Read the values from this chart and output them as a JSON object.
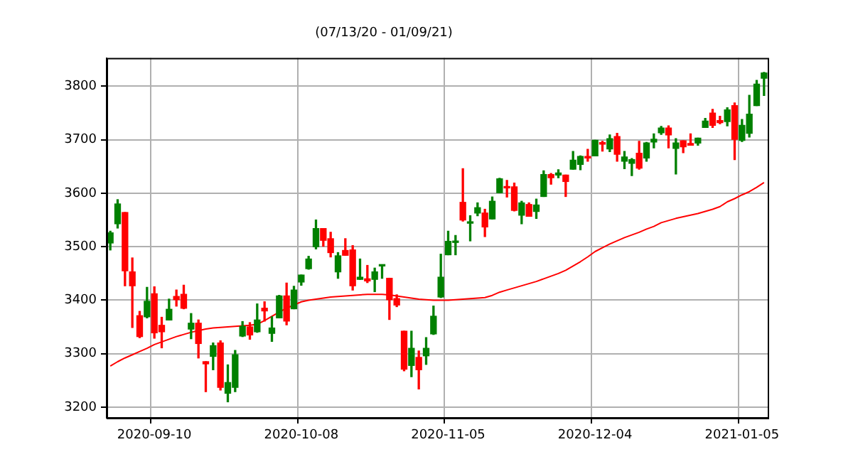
{
  "chart_data": {
    "type": "candlestick",
    "title": "(07/13/20 - 01/09/21)",
    "categories": [
      null,
      null,
      null,
      null,
      null,
      null,
      "2020-09-10",
      null,
      null,
      null,
      null,
      null,
      null,
      null,
      null,
      null,
      null,
      null,
      null,
      null,
      null,
      null,
      null,
      null,
      null,
      null,
      "2020-10-08",
      null,
      null,
      null,
      null,
      null,
      null,
      null,
      null,
      null,
      null,
      null,
      null,
      null,
      null,
      null,
      null,
      null,
      null,
      null,
      "2020-11-05",
      null,
      null,
      null,
      null,
      null,
      null,
      null,
      null,
      null,
      null,
      null,
      null,
      null,
      null,
      null,
      null,
      null,
      null,
      null,
      "2020-12-04",
      null,
      null,
      null,
      null,
      null,
      null,
      null,
      null,
      null,
      null,
      null,
      null,
      null,
      null,
      null,
      null,
      null,
      null,
      null,
      "2021-01-05",
      null,
      null,
      null
    ],
    "ohlc": [
      [
        3507,
        3529,
        3494,
        3526
      ],
      [
        3543,
        3588,
        3535,
        3580
      ],
      [
        3564,
        3564,
        3427,
        3455
      ],
      [
        3453,
        3479,
        3349,
        3427
      ],
      [
        3371,
        3379,
        3330,
        3332
      ],
      [
        3369,
        3424,
        3367,
        3398
      ],
      [
        3412,
        3425,
        3329,
        3339
      ],
      [
        3353,
        3368,
        3311,
        3341
      ],
      [
        3363,
        3402,
        3363,
        3383
      ],
      [
        3407,
        3419,
        3389,
        3401
      ],
      [
        3411,
        3428,
        3384,
        3385
      ],
      [
        3346,
        3375,
        3328,
        3357
      ],
      [
        3357,
        3363,
        3292,
        3319
      ],
      [
        3285,
        3285,
        3229,
        3281
      ],
      [
        3295,
        3320,
        3270,
        3315
      ],
      [
        3320,
        3324,
        3232,
        3237
      ],
      [
        3226,
        3279,
        3210,
        3246
      ],
      [
        3237,
        3306,
        3229,
        3298
      ],
      [
        3333,
        3360,
        3332,
        3351
      ],
      [
        3350,
        3358,
        3327,
        3335
      ],
      [
        3341,
        3393,
        3340,
        3363
      ],
      [
        3385,
        3397,
        3361,
        3380
      ],
      [
        3338,
        3369,
        3323,
        3348
      ],
      [
        3367,
        3409,
        3367,
        3408
      ],
      [
        3408,
        3432,
        3354,
        3361
      ],
      [
        3384,
        3426,
        3384,
        3419
      ],
      [
        3434,
        3447,
        3428,
        3447
      ],
      [
        3459,
        3482,
        3458,
        3477
      ],
      [
        3500,
        3550,
        3496,
        3534
      ],
      [
        3534,
        3534,
        3501,
        3512
      ],
      [
        3515,
        3527,
        3481,
        3489
      ],
      [
        3453,
        3489,
        3441,
        3483
      ],
      [
        3493,
        3515,
        3484,
        3484
      ],
      [
        3494,
        3502,
        3419,
        3427
      ],
      [
        3439,
        3477,
        3439,
        3443
      ],
      [
        3440,
        3465,
        3433,
        3436
      ],
      [
        3439,
        3460,
        3416,
        3453
      ],
      [
        3464,
        3466,
        3441,
        3465
      ],
      [
        3441,
        3441,
        3364,
        3401
      ],
      [
        3403,
        3410,
        3388,
        3391
      ],
      [
        3342,
        3342,
        3268,
        3271
      ],
      [
        3278,
        3342,
        3257,
        3310
      ],
      [
        3293,
        3305,
        3234,
        3270
      ],
      [
        3296,
        3330,
        3280,
        3310
      ],
      [
        3337,
        3389,
        3336,
        3370
      ],
      [
        3406,
        3486,
        3405,
        3443
      ],
      [
        3485,
        3529,
        3485,
        3510
      ],
      [
        3508,
        3521,
        3485,
        3509
      ],
      [
        3583,
        3646,
        3548,
        3550
      ],
      [
        3544,
        3558,
        3511,
        3545
      ],
      [
        3563,
        3582,
        3558,
        3573
      ],
      [
        3563,
        3570,
        3519,
        3537
      ],
      [
        3552,
        3593,
        3552,
        3585
      ],
      [
        3601,
        3628,
        3601,
        3627
      ],
      [
        3612,
        3624,
        3593,
        3610
      ],
      [
        3612,
        3619,
        3567,
        3568
      ],
      [
        3559,
        3585,
        3543,
        3582
      ],
      [
        3579,
        3582,
        3557,
        3557
      ],
      [
        3566,
        3589,
        3553,
        3578
      ],
      [
        3594,
        3642,
        3594,
        3635
      ],
      [
        3635,
        3637,
        3617,
        3629
      ],
      [
        3634,
        3644,
        3629,
        3638
      ],
      [
        3634,
        3634,
        3594,
        3622
      ],
      [
        3645,
        3678,
        3645,
        3662
      ],
      [
        3654,
        3670,
        3644,
        3669
      ],
      [
        3669,
        3682,
        3660,
        3666
      ],
      [
        3670,
        3699,
        3670,
        3699
      ],
      [
        3694,
        3697,
        3679,
        3692
      ],
      [
        3683,
        3709,
        3678,
        3702
      ],
      [
        3706,
        3712,
        3660,
        3673
      ],
      [
        3660,
        3678,
        3646,
        3668
      ],
      [
        3656,
        3665,
        3633,
        3663
      ],
      [
        3675,
        3697,
        3645,
        3647
      ],
      [
        3666,
        3695,
        3660,
        3694
      ],
      [
        3696,
        3711,
        3685,
        3701
      ],
      [
        3713,
        3725,
        3710,
        3722
      ],
      [
        3722,
        3726,
        3685,
        3709
      ],
      [
        3684,
        3702,
        3636,
        3694
      ],
      [
        3698,
        3698,
        3676,
        3687
      ],
      [
        3693,
        3711,
        3690,
        3690
      ],
      [
        3694,
        3703,
        3690,
        3703
      ],
      [
        3723,
        3740,
        3723,
        3735
      ],
      [
        3750,
        3757,
        3723,
        3727
      ],
      [
        3736,
        3744,
        3730,
        3732
      ],
      [
        3734,
        3760,
        3726,
        3756
      ],
      [
        3764,
        3769,
        3663,
        3701
      ],
      [
        3699,
        3738,
        3697,
        3727
      ],
      [
        3712,
        3783,
        3705,
        3748
      ],
      [
        3764,
        3811,
        3764,
        3804
      ],
      [
        3815,
        3826,
        3783,
        3825
      ]
    ],
    "colors": [
      "#008000",
      "#008000",
      "#ff0000",
      "#ff0000",
      "#ff0000",
      "#008000",
      "#ff0000",
      "#ff0000",
      "#008000",
      "#ff0000",
      "#ff0000",
      "#008000",
      "#ff0000",
      "#ff0000",
      "#008000",
      "#ff0000",
      "#008000",
      "#008000",
      "#008000",
      "#ff0000",
      "#008000",
      "#ff0000",
      "#008000",
      "#008000",
      "#ff0000",
      "#008000",
      "#008000",
      "#008000",
      "#008000",
      "#ff0000",
      "#ff0000",
      "#008000",
      "#ff0000",
      "#ff0000",
      "#008000",
      "#ff0000",
      "#008000",
      "#008000",
      "#ff0000",
      "#ff0000",
      "#ff0000",
      "#008000",
      "#ff0000",
      "#008000",
      "#008000",
      "#008000",
      "#008000",
      "#008000",
      "#ff0000",
      "#008000",
      "#008000",
      "#ff0000",
      "#008000",
      "#008000",
      "#ff0000",
      "#ff0000",
      "#008000",
      "#ff0000",
      "#008000",
      "#008000",
      "#ff0000",
      "#008000",
      "#ff0000",
      "#008000",
      "#008000",
      "#ff0000",
      "#008000",
      "#ff0000",
      "#008000",
      "#ff0000",
      "#008000",
      "#008000",
      "#ff0000",
      "#008000",
      "#008000",
      "#008000",
      "#ff0000",
      "#008000",
      "#ff0000",
      "#ff0000",
      "#008000",
      "#008000",
      "#ff0000",
      "#ff0000",
      "#008000",
      "#ff0000",
      "#008000",
      "#008000",
      "#008000",
      "#008000"
    ],
    "series": [
      {
        "type": "line",
        "color": "#ff0000",
        "values": [
          3277,
          3285,
          3292,
          3298,
          3304,
          3310,
          3317,
          3322,
          3327,
          3332,
          3336,
          3340,
          3343,
          3346,
          3348,
          3349,
          3350,
          3351,
          3352,
          3353,
          3355,
          3362,
          3370,
          3378,
          3385,
          3391,
          3397,
          3400,
          3402,
          3404,
          3406,
          3407,
          3408,
          3409,
          3410,
          3411,
          3411,
          3411,
          3410,
          3408,
          3406,
          3404,
          3402,
          3401,
          3400,
          3400,
          3400,
          3401,
          3402,
          3403,
          3404,
          3405,
          3409,
          3415,
          3419,
          3423,
          3427,
          3431,
          3435,
          3440,
          3445,
          3450,
          3456,
          3464,
          3472,
          3481,
          3491,
          3498,
          3505,
          3511,
          3517,
          3522,
          3527,
          3533,
          3538,
          3545,
          3549,
          3553,
          3556,
          3559,
          3562,
          3566,
          3570,
          3575,
          3584,
          3590,
          3597,
          3603,
          3611,
          3620
        ]
      }
    ],
    "ylim": [
      3180,
      3853
    ],
    "yticks": [
      3200,
      3300,
      3400,
      3500,
      3600,
      3700,
      3800
    ],
    "grid": true,
    "legend": false,
    "marker": "none"
  }
}
